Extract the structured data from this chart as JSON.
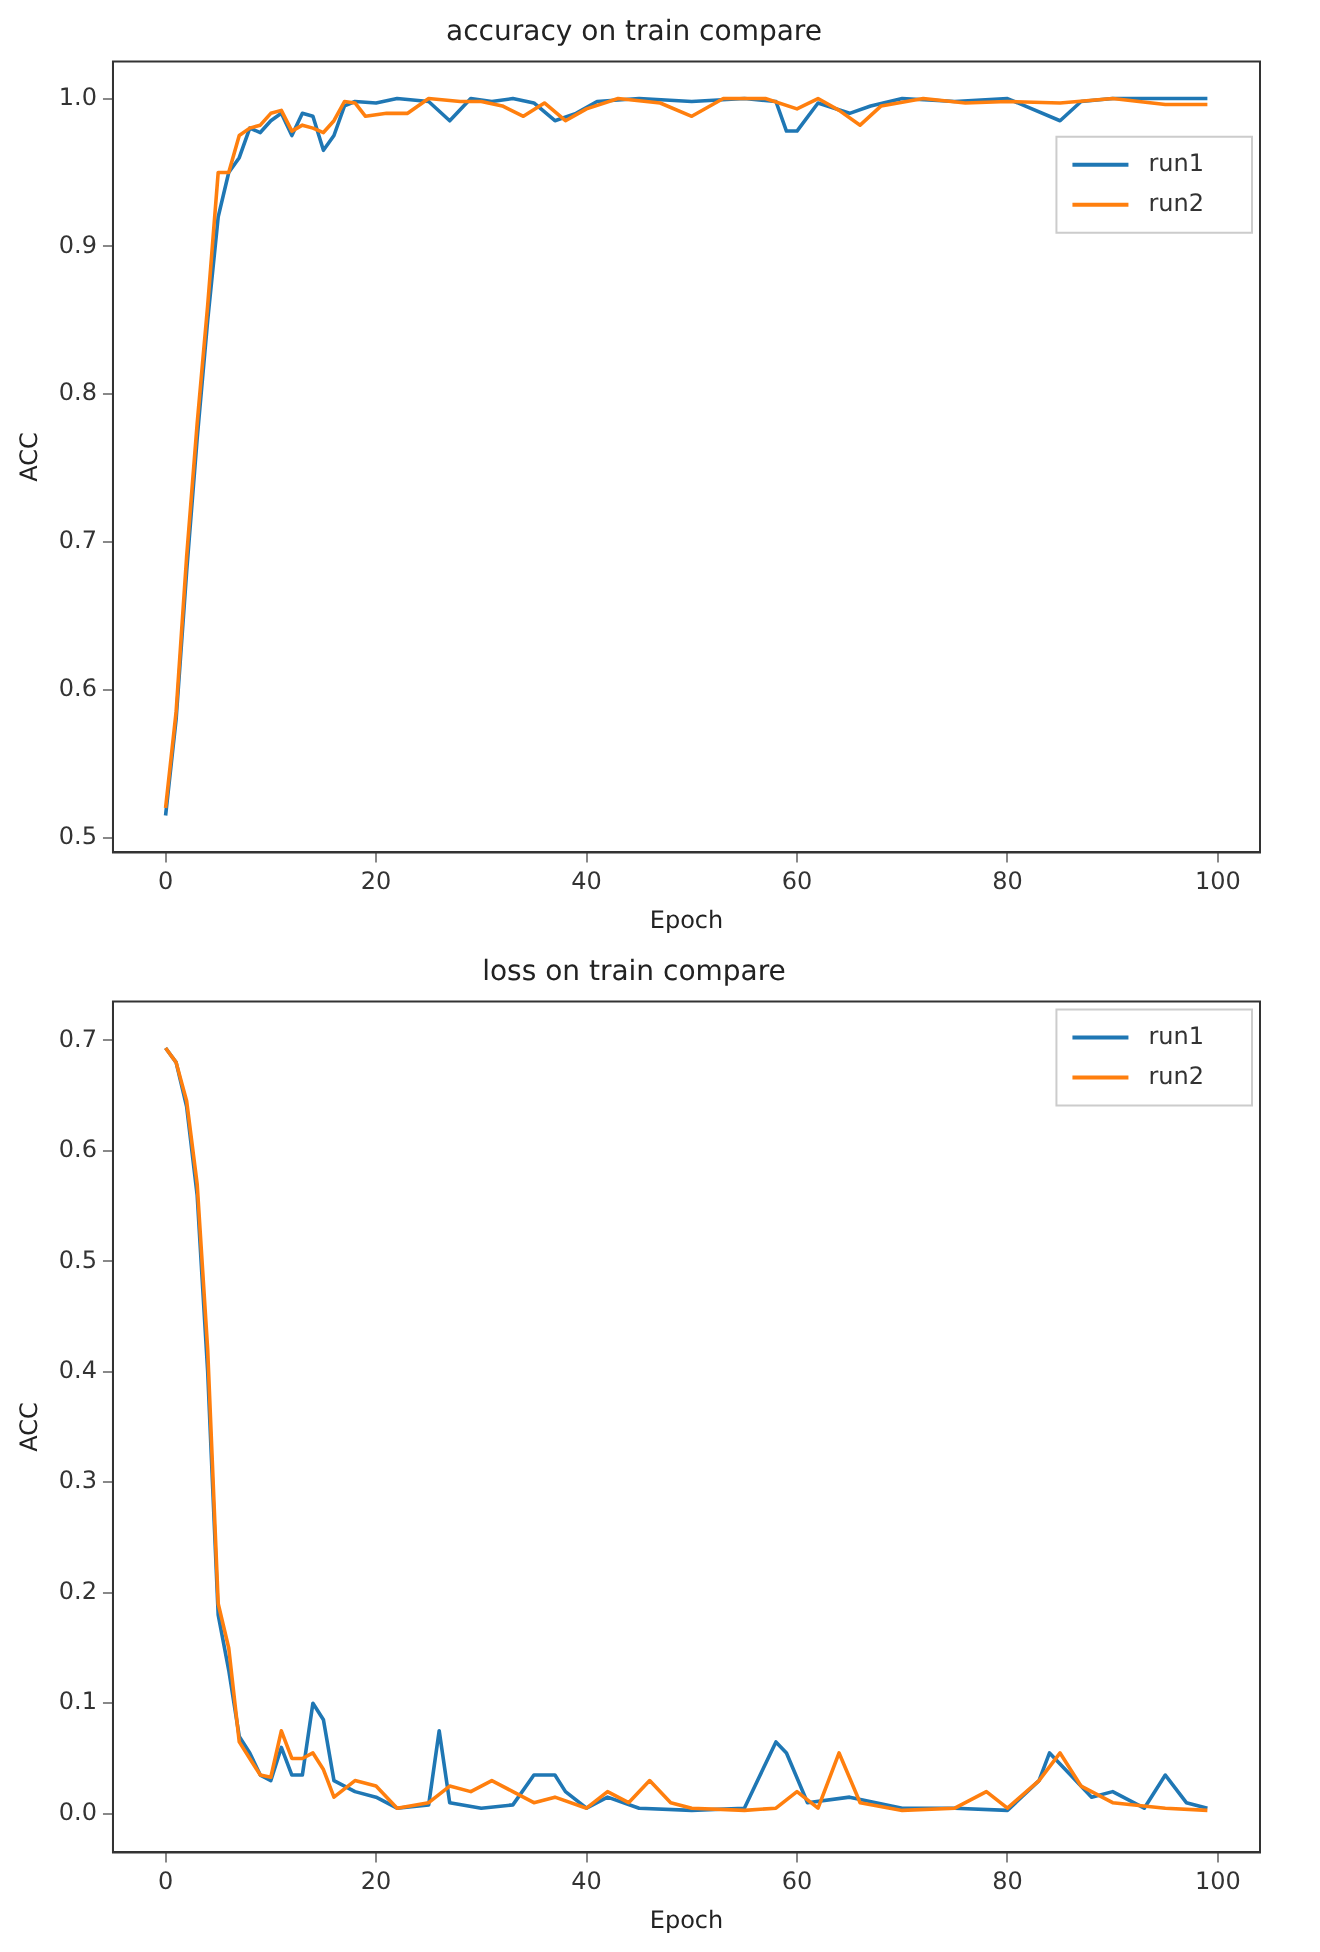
{
  "chart_data": [
    {
      "type": "line",
      "title": "accuracy on train compare",
      "xlabel": "Epoch",
      "ylabel": "ACC",
      "xlim": [
        -5,
        104
      ],
      "xticks": [
        0,
        20,
        40,
        60,
        80,
        100
      ],
      "ylim": [
        0.49,
        1.025
      ],
      "yticks": [
        {
          "value": 0.5,
          "label": "0.5"
        },
        {
          "value": 0.6,
          "label": "0.6"
        },
        {
          "value": 0.7,
          "label": "0.7"
        },
        {
          "value": 0.8,
          "label": "0.8"
        },
        {
          "value": 0.9,
          "label": "0.9"
        },
        {
          "value": 1,
          "label": "1.0"
        }
      ],
      "grid": false,
      "legend": "top right",
      "marker": "none",
      "line_style": "solid",
      "series": [
        {
          "name": "run1",
          "color": "#1f77b4",
          "x": [
            0,
            1,
            2,
            3,
            4,
            5,
            6,
            7,
            8,
            9,
            10,
            11,
            12,
            13,
            14,
            15,
            16,
            17,
            18,
            20,
            22,
            25,
            27,
            29,
            31,
            33,
            35,
            37,
            39,
            41,
            45,
            50,
            55,
            58,
            59,
            60,
            62,
            65,
            67,
            70,
            75,
            80,
            85,
            87,
            90,
            95,
            99
          ],
          "values": [
            0.515,
            0.58,
            0.68,
            0.77,
            0.85,
            0.92,
            0.95,
            0.96,
            0.98,
            0.977,
            0.985,
            0.99,
            0.975,
            0.99,
            0.988,
            0.965,
            0.975,
            0.995,
            0.998,
            0.997,
            1.0,
            0.998,
            0.985,
            1.0,
            0.998,
            1.0,
            0.997,
            0.985,
            0.99,
            0.998,
            1.0,
            0.998,
            1.0,
            0.998,
            0.978,
            0.978,
            0.997,
            0.99,
            0.995,
            1.0,
            0.998,
            1.0,
            0.985,
            0.998,
            1.0,
            1.0,
            1.0
          ]
        },
        {
          "name": "run2",
          "color": "#ff7f0e",
          "x": [
            0,
            1,
            2,
            3,
            4,
            5,
            6,
            7,
            8,
            9,
            10,
            11,
            12,
            13,
            14,
            15,
            16,
            17,
            18,
            19,
            21,
            23,
            25,
            28,
            30,
            32,
            34,
            36,
            38,
            40,
            43,
            47,
            50,
            53,
            57,
            60,
            62,
            64,
            66,
            68,
            72,
            76,
            80,
            85,
            90,
            95,
            99
          ],
          "values": [
            0.52,
            0.585,
            0.69,
            0.78,
            0.86,
            0.95,
            0.95,
            0.975,
            0.98,
            0.982,
            0.99,
            0.992,
            0.978,
            0.982,
            0.98,
            0.977,
            0.985,
            0.998,
            0.997,
            0.988,
            0.99,
            0.99,
            1.0,
            0.998,
            0.998,
            0.995,
            0.988,
            0.997,
            0.985,
            0.993,
            1.0,
            0.997,
            0.988,
            1.0,
            1.0,
            0.993,
            1.0,
            0.992,
            0.982,
            0.995,
            1.0,
            0.997,
            0.998,
            0.997,
            1.0,
            0.996,
            0.996
          ]
        }
      ]
    },
    {
      "type": "line",
      "title": "loss on train compare",
      "xlabel": "Epoch",
      "ylabel": "ACC",
      "xlim": [
        -5,
        104
      ],
      "xticks": [
        0,
        20,
        40,
        60,
        80,
        100
      ],
      "ylim": [
        -0.035,
        0.735
      ],
      "yticks": [
        {
          "value": 0,
          "label": "0.0"
        },
        {
          "value": 0.1,
          "label": "0.1"
        },
        {
          "value": 0.2,
          "label": "0.2"
        },
        {
          "value": 0.3,
          "label": "0.3"
        },
        {
          "value": 0.4,
          "label": "0.4"
        },
        {
          "value": 0.5,
          "label": "0.5"
        },
        {
          "value": 0.6,
          "label": "0.6"
        },
        {
          "value": 0.7,
          "label": "0.7"
        }
      ],
      "grid": false,
      "legend": "top right",
      "marker": "none",
      "line_style": "solid",
      "series": [
        {
          "name": "run1",
          "color": "#1f77b4",
          "x": [
            0,
            1,
            2,
            3,
            4,
            5,
            6,
            7,
            8,
            9,
            10,
            11,
            12,
            13,
            14,
            15,
            16,
            18,
            20,
            22,
            25,
            26,
            27,
            30,
            33,
            35,
            37,
            38,
            40,
            42,
            45,
            50,
            55,
            58,
            59,
            61,
            65,
            70,
            75,
            80,
            83,
            84,
            86,
            88,
            90,
            93,
            95,
            97,
            99
          ],
          "values": [
            0.693,
            0.68,
            0.64,
            0.56,
            0.4,
            0.18,
            0.13,
            0.07,
            0.055,
            0.035,
            0.03,
            0.06,
            0.035,
            0.035,
            0.1,
            0.085,
            0.03,
            0.02,
            0.015,
            0.005,
            0.008,
            0.075,
            0.01,
            0.005,
            0.008,
            0.035,
            0.035,
            0.02,
            0.005,
            0.015,
            0.005,
            0.003,
            0.005,
            0.065,
            0.055,
            0.01,
            0.015,
            0.005,
            0.005,
            0.003,
            0.03,
            0.055,
            0.035,
            0.015,
            0.02,
            0.005,
            0.035,
            0.01,
            0.005
          ]
        },
        {
          "name": "run2",
          "color": "#ff7f0e",
          "x": [
            0,
            1,
            2,
            3,
            4,
            5,
            6,
            7,
            8,
            9,
            10,
            11,
            12,
            13,
            14,
            15,
            16,
            18,
            20,
            22,
            25,
            27,
            29,
            31,
            33,
            35,
            37,
            40,
            42,
            44,
            46,
            48,
            50,
            55,
            58,
            60,
            62,
            64,
            66,
            70,
            75,
            78,
            80,
            83,
            85,
            87,
            90,
            95,
            99
          ],
          "values": [
            0.693,
            0.68,
            0.645,
            0.57,
            0.42,
            0.19,
            0.15,
            0.065,
            0.05,
            0.035,
            0.033,
            0.075,
            0.05,
            0.05,
            0.055,
            0.04,
            0.015,
            0.03,
            0.025,
            0.005,
            0.01,
            0.025,
            0.02,
            0.03,
            0.02,
            0.01,
            0.015,
            0.005,
            0.02,
            0.01,
            0.03,
            0.01,
            0.005,
            0.003,
            0.005,
            0.02,
            0.005,
            0.055,
            0.01,
            0.003,
            0.005,
            0.02,
            0.005,
            0.03,
            0.055,
            0.025,
            0.01,
            0.005,
            0.003
          ]
        }
      ]
    }
  ]
}
